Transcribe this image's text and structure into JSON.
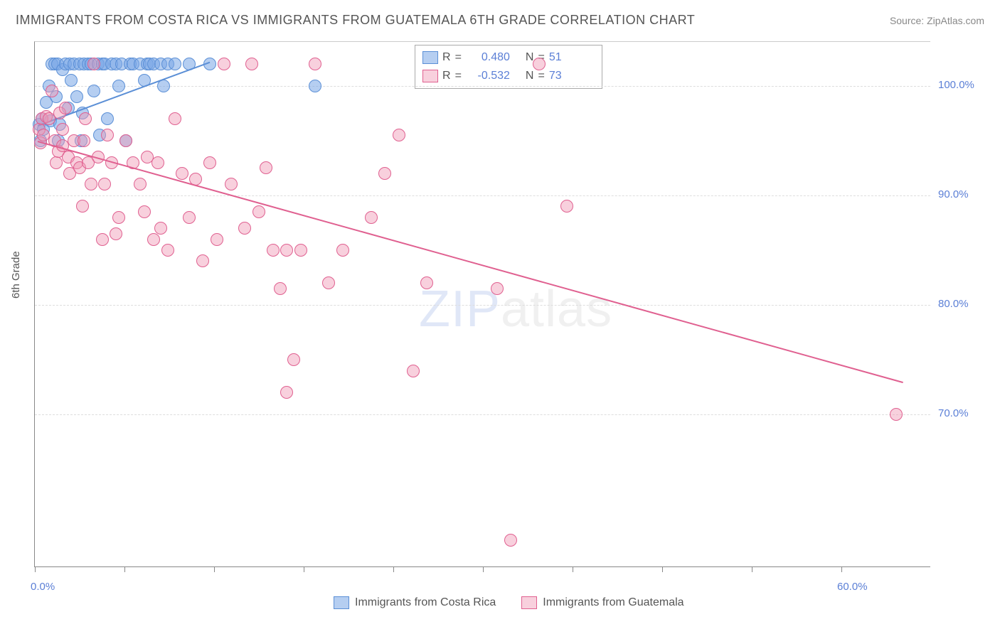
{
  "title": "IMMIGRANTS FROM COSTA RICA VS IMMIGRANTS FROM GUATEMALA 6TH GRADE CORRELATION CHART",
  "source": "Source: ZipAtlas.com",
  "y_axis_title": "6th Grade",
  "watermark_bold": "ZIP",
  "watermark_light": "atlas",
  "chart": {
    "type": "scatter-with-regression",
    "background_color": "#ffffff",
    "grid_color": "#dddddd",
    "axis_color": "#888888",
    "tick_color": "#888888",
    "label_color": "#5b7fd6",
    "label_fontsize": 15,
    "title_fontsize": 18,
    "xlim": [
      0,
      64
    ],
    "ylim": [
      56,
      104
    ],
    "y_ticks": [
      70,
      80,
      90,
      100
    ],
    "y_tick_labels": [
      "70.0%",
      "80.0%",
      "90.0%",
      "100.0%"
    ],
    "x_ticks": [
      0,
      6.4,
      12.8,
      19.2,
      25.6,
      32,
      38.4,
      44.8,
      51.2,
      57.6
    ],
    "x_tick_labels": [
      "0.0%",
      "",
      "",
      "",
      "",
      "",
      "",
      "",
      "",
      "60.0%"
    ],
    "marker_radius": 9,
    "line_width": 2,
    "series": [
      {
        "name": "Immigrants from Costa Rica",
        "key": "costa_rica",
        "color_fill": "rgba(120,165,230,0.55)",
        "color_stroke": "#5b8fd6",
        "R": "0.480",
        "N": "51",
        "regression": {
          "x1": 0.2,
          "y1": 96.4,
          "x2": 12.5,
          "y2": 102.2
        },
        "points": [
          [
            0.3,
            96.5
          ],
          [
            0.5,
            97.0
          ],
          [
            0.6,
            96.0
          ],
          [
            0.8,
            98.5
          ],
          [
            1.0,
            100.0
          ],
          [
            1.1,
            96.8
          ],
          [
            1.2,
            102.0
          ],
          [
            1.4,
            102.0
          ],
          [
            1.5,
            99.0
          ],
          [
            1.6,
            102.0
          ],
          [
            1.8,
            96.5
          ],
          [
            2.0,
            101.5
          ],
          [
            2.2,
            102.0
          ],
          [
            2.4,
            98.0
          ],
          [
            2.5,
            102.0
          ],
          [
            2.6,
            100.5
          ],
          [
            2.8,
            102.0
          ],
          [
            3.0,
            99.0
          ],
          [
            3.2,
            102.0
          ],
          [
            3.4,
            97.5
          ],
          [
            3.5,
            102.0
          ],
          [
            3.8,
            102.0
          ],
          [
            4.0,
            102.0
          ],
          [
            4.2,
            99.5
          ],
          [
            4.5,
            102.0
          ],
          [
            4.8,
            102.0
          ],
          [
            5.0,
            102.0
          ],
          [
            5.2,
            97.0
          ],
          [
            5.5,
            102.0
          ],
          [
            5.8,
            102.0
          ],
          [
            6.0,
            100.0
          ],
          [
            6.2,
            102.0
          ],
          [
            6.5,
            95.0
          ],
          [
            6.8,
            102.0
          ],
          [
            7.0,
            102.0
          ],
          [
            7.5,
            102.0
          ],
          [
            7.8,
            100.5
          ],
          [
            8.0,
            102.0
          ],
          [
            8.2,
            102.0
          ],
          [
            8.5,
            102.0
          ],
          [
            9.0,
            102.0
          ],
          [
            9.2,
            100.0
          ],
          [
            9.5,
            102.0
          ],
          [
            10.0,
            102.0
          ],
          [
            11.0,
            102.0
          ],
          [
            12.5,
            102.0
          ],
          [
            20.0,
            100.0
          ],
          [
            3.3,
            95.0
          ],
          [
            4.6,
            95.5
          ],
          [
            0.4,
            95.0
          ],
          [
            1.7,
            95.0
          ]
        ]
      },
      {
        "name": "Immigrants from Guatemala",
        "key": "guatemala",
        "color_fill": "rgba(240,150,180,0.45)",
        "color_stroke": "#e06090",
        "R": "-0.532",
        "N": "73",
        "regression": {
          "x1": 0.2,
          "y1": 95.0,
          "x2": 62.0,
          "y2": 73.0
        },
        "points": [
          [
            0.3,
            96.0
          ],
          [
            0.4,
            94.8
          ],
          [
            0.5,
            97.0
          ],
          [
            0.6,
            95.5
          ],
          [
            0.8,
            97.2
          ],
          [
            1.0,
            97.0
          ],
          [
            1.2,
            99.5
          ],
          [
            1.4,
            95.0
          ],
          [
            1.5,
            93.0
          ],
          [
            1.7,
            94.0
          ],
          [
            1.8,
            97.5
          ],
          [
            2.0,
            94.5
          ],
          [
            2.0,
            96.0
          ],
          [
            2.2,
            98.0
          ],
          [
            2.4,
            93.5
          ],
          [
            2.5,
            92.0
          ],
          [
            2.8,
            95.0
          ],
          [
            3.0,
            93.0
          ],
          [
            3.2,
            92.5
          ],
          [
            3.4,
            89.0
          ],
          [
            3.5,
            95.0
          ],
          [
            3.6,
            97.0
          ],
          [
            3.8,
            93.0
          ],
          [
            4.0,
            91.0
          ],
          [
            4.2,
            102.0
          ],
          [
            4.5,
            93.5
          ],
          [
            4.8,
            86.0
          ],
          [
            5.0,
            91.0
          ],
          [
            5.2,
            95.5
          ],
          [
            5.5,
            93.0
          ],
          [
            5.8,
            86.5
          ],
          [
            6.0,
            88.0
          ],
          [
            6.5,
            95.0
          ],
          [
            7.0,
            93.0
          ],
          [
            7.5,
            91.0
          ],
          [
            7.8,
            88.5
          ],
          [
            8.0,
            93.5
          ],
          [
            8.5,
            86.0
          ],
          [
            8.8,
            93.0
          ],
          [
            9.0,
            87.0
          ],
          [
            9.5,
            85.0
          ],
          [
            10.0,
            97.0
          ],
          [
            10.5,
            92.0
          ],
          [
            11.0,
            88.0
          ],
          [
            11.5,
            91.5
          ],
          [
            12.0,
            84.0
          ],
          [
            12.5,
            93.0
          ],
          [
            13.0,
            86.0
          ],
          [
            13.5,
            102.0
          ],
          [
            14.0,
            91.0
          ],
          [
            15.0,
            87.0
          ],
          [
            15.5,
            102.0
          ],
          [
            16.0,
            88.5
          ],
          [
            16.5,
            92.5
          ],
          [
            17.0,
            85.0
          ],
          [
            17.5,
            81.5
          ],
          [
            18.0,
            85.0
          ],
          [
            18.0,
            72.0
          ],
          [
            18.5,
            75.0
          ],
          [
            19.0,
            85.0
          ],
          [
            20.0,
            102.0
          ],
          [
            21.0,
            82.0
          ],
          [
            22.0,
            85.0
          ],
          [
            24.0,
            88.0
          ],
          [
            25.0,
            92.0
          ],
          [
            26.0,
            95.5
          ],
          [
            27.0,
            74.0
          ],
          [
            28.0,
            82.0
          ],
          [
            33.0,
            81.5
          ],
          [
            34.0,
            58.5
          ],
          [
            36.0,
            102.0
          ],
          [
            38.0,
            89.0
          ],
          [
            61.5,
            70.0
          ]
        ]
      }
    ]
  },
  "legend_top": {
    "r_label": "R",
    "n_label": "N",
    "eq": "="
  },
  "legend_bottom": {
    "items": [
      {
        "label": "Immigrants from Costa Rica",
        "swatch": "costa_rica"
      },
      {
        "label": "Immigrants from Guatemala",
        "swatch": "guatemala"
      }
    ]
  }
}
